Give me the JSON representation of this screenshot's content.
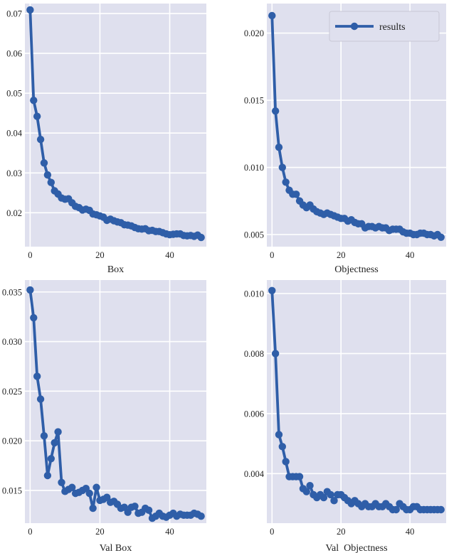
{
  "line_color": "#2f5ea8",
  "plot_bg": "#dfe0ee",
  "grid_color": "#ffffff",
  "chart_data": [
    {
      "type": "line",
      "xlabel": "Box",
      "xlim": [
        -1.5,
        50.5
      ],
      "ylim": [
        0.0115,
        0.0725
      ],
      "xticks": [
        0,
        20,
        40
      ],
      "yticks": [
        0.02,
        0.03,
        0.04,
        0.05,
        0.06,
        0.07
      ],
      "ytick_labels": [
        "0.02",
        "0.03",
        "0.04",
        "0.05",
        "0.06",
        "0.07"
      ],
      "legend": false,
      "series": [
        {
          "x": [
            0,
            1,
            2,
            3,
            4,
            5,
            6,
            7,
            8,
            9,
            10,
            11,
            12,
            13,
            14,
            15,
            16,
            17,
            18,
            19,
            20,
            21,
            22,
            23,
            24,
            25,
            26,
            27,
            28,
            29,
            30,
            31,
            32,
            33,
            34,
            35,
            36,
            37,
            38,
            39,
            40,
            41,
            42,
            43,
            44,
            45,
            46,
            47,
            48,
            49
          ],
          "values": [
            0.0709,
            0.0482,
            0.0442,
            0.0384,
            0.0325,
            0.0295,
            0.0276,
            0.0255,
            0.0247,
            0.0237,
            0.0234,
            0.0235,
            0.0225,
            0.0216,
            0.0213,
            0.0207,
            0.0209,
            0.0206,
            0.0197,
            0.0195,
            0.0192,
            0.0189,
            0.0181,
            0.0184,
            0.018,
            0.0177,
            0.0175,
            0.017,
            0.0169,
            0.0167,
            0.0163,
            0.016,
            0.0159,
            0.016,
            0.0155,
            0.0156,
            0.0153,
            0.0153,
            0.015,
            0.0147,
            0.0145,
            0.0146,
            0.0147,
            0.0147,
            0.0143,
            0.0142,
            0.0143,
            0.0141,
            0.0144,
            0.0138
          ]
        }
      ]
    },
    {
      "type": "line",
      "xlabel": "Objectness",
      "xlim": [
        -1.5,
        50.5
      ],
      "ylim": [
        0.0041,
        0.0222
      ],
      "xticks": [
        0,
        20,
        40
      ],
      "yticks": [
        0.005,
        0.01,
        0.015,
        0.02
      ],
      "ytick_labels": [
        "0.005",
        "0.010",
        "0.015",
        "0.020"
      ],
      "legend": true,
      "legend_position": "top-right",
      "series": [
        {
          "name": "results",
          "x": [
            0,
            1,
            2,
            3,
            4,
            5,
            6,
            7,
            8,
            9,
            10,
            11,
            12,
            13,
            14,
            15,
            16,
            17,
            18,
            19,
            20,
            21,
            22,
            23,
            24,
            25,
            26,
            27,
            28,
            29,
            30,
            31,
            32,
            33,
            34,
            35,
            36,
            37,
            38,
            39,
            40,
            41,
            42,
            43,
            44,
            45,
            46,
            47,
            48,
            49
          ],
          "values": [
            0.0213,
            0.0142,
            0.0115,
            0.01,
            0.0089,
            0.0083,
            0.008,
            0.008,
            0.0075,
            0.0072,
            0.007,
            0.0072,
            0.0069,
            0.0067,
            0.0066,
            0.0065,
            0.0066,
            0.0065,
            0.0064,
            0.0063,
            0.0062,
            0.0062,
            0.006,
            0.0061,
            0.0059,
            0.0058,
            0.0058,
            0.0055,
            0.0056,
            0.0056,
            0.0055,
            0.0056,
            0.0055,
            0.0055,
            0.0053,
            0.0054,
            0.0054,
            0.0054,
            0.0052,
            0.0051,
            0.0051,
            0.005,
            0.005,
            0.0051,
            0.0051,
            0.005,
            0.005,
            0.0049,
            0.005,
            0.0048
          ]
        }
      ]
    },
    {
      "type": "line",
      "xlabel": "Val Box",
      "xlim": [
        -1.5,
        50.5
      ],
      "ylim": [
        0.0117,
        0.0362
      ],
      "xticks": [
        0,
        20,
        40
      ],
      "yticks": [
        0.015,
        0.02,
        0.025,
        0.03,
        0.035
      ],
      "ytick_labels": [
        "0.015",
        "0.020",
        "0.025",
        "0.030",
        "0.035"
      ],
      "legend": false,
      "series": [
        {
          "x": [
            0,
            1,
            2,
            3,
            4,
            5,
            6,
            7,
            8,
            9,
            10,
            11,
            12,
            13,
            14,
            15,
            16,
            17,
            18,
            19,
            20,
            21,
            22,
            23,
            24,
            25,
            26,
            27,
            28,
            29,
            30,
            31,
            32,
            33,
            34,
            35,
            36,
            37,
            38,
            39,
            40,
            41,
            42,
            43,
            44,
            45,
            46,
            47,
            48,
            49
          ],
          "values": [
            0.0352,
            0.0324,
            0.0265,
            0.0242,
            0.0205,
            0.0165,
            0.0182,
            0.0198,
            0.0209,
            0.0158,
            0.0149,
            0.0151,
            0.0153,
            0.0147,
            0.0148,
            0.015,
            0.0152,
            0.0147,
            0.0132,
            0.0153,
            0.014,
            0.0141,
            0.0143,
            0.0138,
            0.0139,
            0.0136,
            0.0132,
            0.0133,
            0.0128,
            0.0133,
            0.0134,
            0.0127,
            0.0128,
            0.0132,
            0.013,
            0.0122,
            0.0124,
            0.0127,
            0.0124,
            0.0123,
            0.0125,
            0.0127,
            0.0124,
            0.0126,
            0.0125,
            0.0125,
            0.0125,
            0.0127,
            0.0126,
            0.0124
          ]
        }
      ]
    },
    {
      "type": "line",
      "xlabel": "Val  Objectness",
      "xlim": [
        -1.5,
        50.5
      ],
      "ylim": [
        0.00235,
        0.01045
      ],
      "xticks": [
        0,
        20,
        40
      ],
      "yticks": [
        0.004,
        0.006,
        0.008,
        0.01
      ],
      "ytick_labels": [
        "0.004",
        "0.006",
        "0.008",
        "0.010"
      ],
      "legend": false,
      "series": [
        {
          "x": [
            0,
            1,
            2,
            3,
            4,
            5,
            6,
            7,
            8,
            9,
            10,
            11,
            12,
            13,
            14,
            15,
            16,
            17,
            18,
            19,
            20,
            21,
            22,
            23,
            24,
            25,
            26,
            27,
            28,
            29,
            30,
            31,
            32,
            33,
            34,
            35,
            36,
            37,
            38,
            39,
            40,
            41,
            42,
            43,
            44,
            45,
            46,
            47,
            48,
            49
          ],
          "values": [
            0.0101,
            0.008,
            0.0053,
            0.0049,
            0.0044,
            0.0039,
            0.0039,
            0.0039,
            0.0039,
            0.0035,
            0.0034,
            0.0036,
            0.0033,
            0.0032,
            0.0033,
            0.0032,
            0.0034,
            0.0033,
            0.0031,
            0.0033,
            0.0033,
            0.0032,
            0.0031,
            0.003,
            0.0031,
            0.003,
            0.0029,
            0.003,
            0.0029,
            0.0029,
            0.003,
            0.0029,
            0.0029,
            0.003,
            0.0029,
            0.0028,
            0.0028,
            0.003,
            0.0029,
            0.0028,
            0.0028,
            0.0029,
            0.0029,
            0.0028,
            0.0028,
            0.0028,
            0.0028,
            0.0028,
            0.0028,
            0.0028
          ]
        }
      ]
    }
  ]
}
